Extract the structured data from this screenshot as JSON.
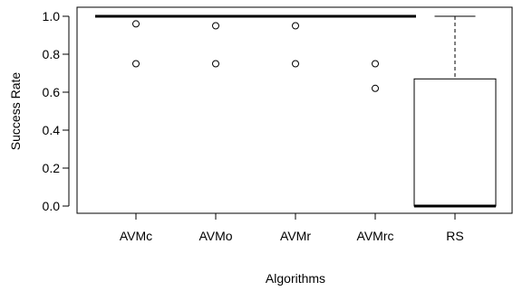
{
  "chart_data": {
    "type": "boxplot",
    "xlabel": "Algorithms",
    "ylabel": "Success Rate",
    "ylim": [
      0.0,
      1.0
    ],
    "yticks": [
      "0.0",
      "0.2",
      "0.4",
      "0.6",
      "0.8",
      "1.0"
    ],
    "categories": [
      "AVMc",
      "AVMo",
      "AVMr",
      "AVMrc",
      "RS"
    ],
    "boxes": [
      {
        "category": "AVMc",
        "min": 1.0,
        "q1": 1.0,
        "median": 1.0,
        "q3": 1.0,
        "max": 1.0,
        "outliers": [
          0.96,
          0.75
        ]
      },
      {
        "category": "AVMo",
        "min": 1.0,
        "q1": 1.0,
        "median": 1.0,
        "q3": 1.0,
        "max": 1.0,
        "outliers": [
          0.95,
          0.75
        ]
      },
      {
        "category": "AVMr",
        "min": 1.0,
        "q1": 1.0,
        "median": 1.0,
        "q3": 1.0,
        "max": 1.0,
        "outliers": [
          0.95,
          0.75
        ]
      },
      {
        "category": "AVMrc",
        "min": 1.0,
        "q1": 1.0,
        "median": 1.0,
        "q3": 1.0,
        "max": 1.0,
        "outliers": [
          0.75,
          0.62
        ]
      },
      {
        "category": "RS",
        "min": 0.0,
        "q1": 0.0,
        "median": 0.0,
        "q3": 0.67,
        "max": 1.0,
        "outliers": []
      }
    ]
  }
}
